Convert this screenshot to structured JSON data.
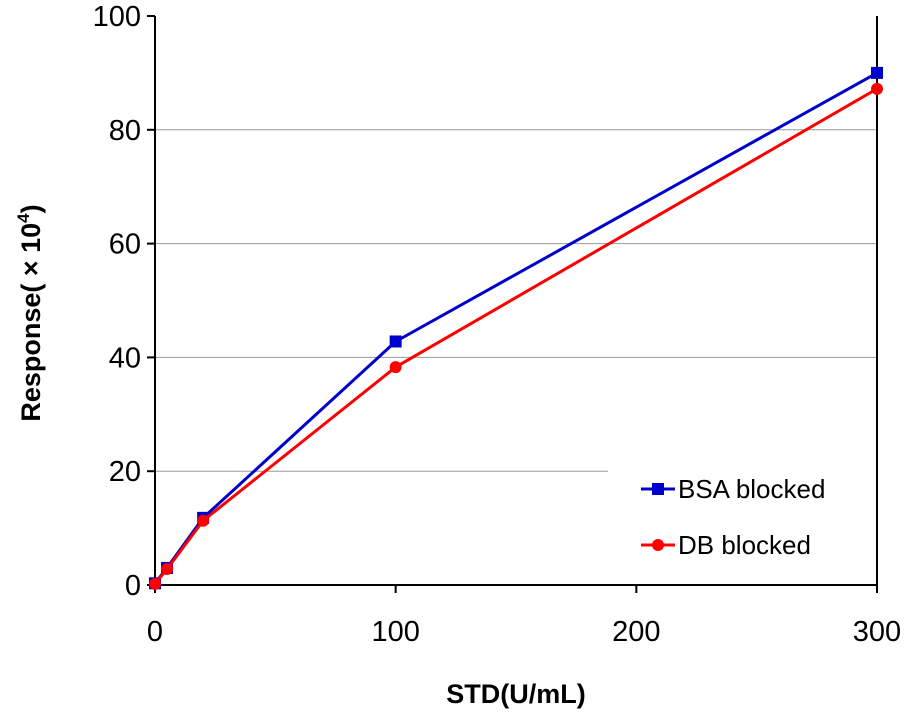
{
  "chart_data": {
    "type": "line",
    "title": "",
    "xlabel": "STD(U/mL)",
    "ylabel_text": "Response( × 10",
    "ylabel_exponent": "4",
    "ylabel_close": ")",
    "xlim": [
      0,
      300
    ],
    "ylim": [
      0,
      100
    ],
    "x_ticks": [
      0,
      100,
      200,
      300
    ],
    "y_ticks": [
      0,
      20,
      40,
      60,
      80,
      100
    ],
    "grid": "horizontal",
    "legend_position": "bottom-right",
    "series": [
      {
        "name": "BSA blocked",
        "color": "#0000CC",
        "marker": "square",
        "x": [
          0,
          5,
          20,
          100,
          300
        ],
        "y": [
          0.3,
          3.0,
          11.8,
          42.8,
          90.0
        ]
      },
      {
        "name": "DB blocked",
        "color": "#FF0000",
        "marker": "circle",
        "x": [
          0,
          5,
          20,
          100,
          300
        ],
        "y": [
          0.2,
          2.8,
          11.3,
          38.3,
          87.2
        ]
      }
    ]
  }
}
